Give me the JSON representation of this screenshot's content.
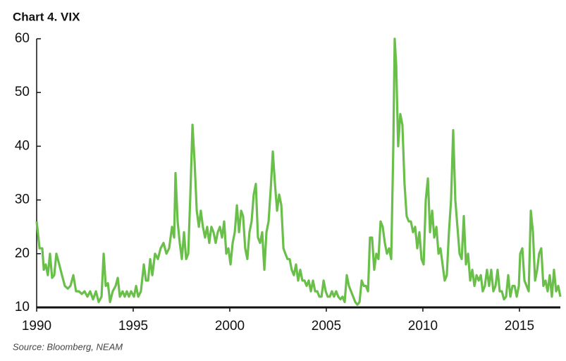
{
  "chart_data": {
    "type": "line",
    "title": "Chart 4. VIX",
    "source": "Source: Bloomberg, NEAM",
    "color": "#6abf4b",
    "x": [
      1990.0,
      1990.15,
      1990.29,
      1990.37,
      1990.47,
      1990.58,
      1990.69,
      1990.8,
      1990.91,
      1991.02,
      1991.17,
      1991.31,
      1991.46,
      1991.61,
      1991.75,
      1991.9,
      1992.04,
      1992.19,
      1992.34,
      1992.48,
      1992.63,
      1992.77,
      1992.92,
      1993.07,
      1993.21,
      1993.36,
      1993.47,
      1993.58,
      1993.69,
      1993.8,
      1993.94,
      1994.09,
      1994.2,
      1994.31,
      1994.45,
      1994.56,
      1994.67,
      1994.78,
      1994.89,
      1995.04,
      1995.15,
      1995.26,
      1995.4,
      1995.55,
      1995.66,
      1995.77,
      1995.88,
      1995.99,
      1996.13,
      1996.28,
      1996.42,
      1996.57,
      1996.72,
      1996.86,
      1997.01,
      1997.12,
      1997.19,
      1997.3,
      1997.41,
      1997.52,
      1997.63,
      1997.74,
      1997.85,
      1997.96,
      1998.07,
      1998.18,
      1998.29,
      1998.4,
      1998.5,
      1998.61,
      1998.72,
      1998.83,
      1998.94,
      1999.05,
      1999.16,
      1999.27,
      1999.38,
      1999.49,
      1999.6,
      1999.71,
      1999.82,
      1999.93,
      2000.04,
      2000.15,
      2000.26,
      2000.37,
      2000.48,
      2000.59,
      2000.69,
      2000.8,
      2000.91,
      2001.02,
      2001.13,
      2001.24,
      2001.35,
      2001.46,
      2001.57,
      2001.68,
      2001.79,
      2001.9,
      2002.01,
      2002.12,
      2002.23,
      2002.34,
      2002.45,
      2002.56,
      2002.67,
      2002.78,
      2002.88,
      2002.99,
      2003.1,
      2003.21,
      2003.32,
      2003.43,
      2003.54,
      2003.65,
      2003.76,
      2003.87,
      2003.98,
      2004.09,
      2004.2,
      2004.31,
      2004.42,
      2004.53,
      2004.64,
      2004.75,
      2004.86,
      2004.97,
      2005.07,
      2005.18,
      2005.29,
      2005.4,
      2005.51,
      2005.62,
      2005.73,
      2005.84,
      2005.95,
      2006.06,
      2006.17,
      2006.28,
      2006.39,
      2006.5,
      2006.61,
      2006.72,
      2006.83,
      2006.94,
      2007.05,
      2007.16,
      2007.26,
      2007.37,
      2007.48,
      2007.59,
      2007.7,
      2007.81,
      2007.92,
      2008.03,
      2008.14,
      2008.25,
      2008.36,
      2008.47,
      2008.54,
      2008.62,
      2008.72,
      2008.83,
      2008.94,
      2009.05,
      2009.16,
      2009.27,
      2009.38,
      2009.49,
      2009.6,
      2009.71,
      2009.82,
      2009.93,
      2010.04,
      2010.15,
      2010.26,
      2010.37,
      2010.48,
      2010.59,
      2010.7,
      2010.81,
      2010.91,
      2011.02,
      2011.13,
      2011.24,
      2011.35,
      2011.46,
      2011.57,
      2011.68,
      2011.79,
      2011.9,
      2012.01,
      2012.12,
      2012.23,
      2012.34,
      2012.45,
      2012.56,
      2012.67,
      2012.78,
      2012.89,
      2013.0,
      2013.1,
      2013.21,
      2013.32,
      2013.43,
      2013.54,
      2013.65,
      2013.76,
      2013.87,
      2013.98,
      2014.09,
      2014.2,
      2014.31,
      2014.42,
      2014.53,
      2014.64,
      2014.75,
      2014.86,
      2014.97,
      2015.04,
      2015.15,
      2015.26,
      2015.37,
      2015.48,
      2015.59,
      2015.7,
      2015.81,
      2015.92,
      2016.02,
      2016.13,
      2016.24,
      2016.35,
      2016.46,
      2016.57,
      2016.68,
      2016.79,
      2016.9,
      2017.01,
      2017.12
    ],
    "values": [
      26,
      21,
      21,
      17,
      18,
      16,
      20,
      15.5,
      16,
      20,
      18,
      16,
      14,
      13.5,
      14,
      16,
      13,
      13,
      12.5,
      13,
      12,
      13,
      11.5,
      13,
      11,
      12,
      20,
      14,
      14.5,
      11,
      13,
      14,
      15.5,
      12,
      13,
      12,
      13,
      12,
      13,
      12,
      14,
      12,
      13,
      18,
      15,
      15,
      19,
      16,
      20,
      19,
      21,
      22,
      20,
      21,
      25,
      23,
      35,
      26,
      22,
      19,
      24,
      19,
      20,
      31,
      44,
      37,
      28,
      25,
      28,
      25,
      23,
      25,
      22,
      25,
      24,
      22,
      24,
      25,
      23,
      26,
      20,
      21,
      18,
      22,
      24,
      29,
      24,
      28,
      27,
      21,
      19,
      24,
      26,
      31,
      33,
      23,
      22,
      24,
      17,
      24,
      26,
      32,
      39,
      33,
      28,
      31,
      29,
      21,
      20,
      19,
      19,
      17,
      16,
      18,
      15,
      17,
      15,
      15,
      14,
      15,
      13,
      15,
      13,
      13,
      12,
      12,
      15,
      13,
      12,
      12,
      13,
      12,
      13,
      12,
      11.5,
      12,
      11,
      16,
      14,
      13,
      12,
      11,
      10.5,
      11,
      15,
      14,
      14,
      13,
      23,
      23,
      17,
      20,
      19,
      26,
      25,
      22,
      20,
      21,
      19,
      40,
      60,
      55,
      40,
      46,
      44,
      33,
      27,
      26,
      26,
      24,
      25,
      21,
      24,
      19,
      18,
      30,
      34,
      24,
      28,
      23,
      25,
      20,
      21,
      18,
      15,
      16,
      24,
      30,
      43,
      30,
      25,
      20,
      19,
      27,
      18,
      20,
      15,
      17,
      14,
      16,
      15,
      16,
      13,
      14,
      17,
      14,
      17,
      13,
      14,
      17,
      13,
      13,
      11.5,
      12,
      16,
      12,
      14,
      14,
      12,
      14,
      20,
      21,
      15,
      14,
      13,
      28,
      24,
      15,
      17,
      20,
      21,
      14,
      15,
      13,
      16,
      12,
      17,
      13,
      14,
      12
    ],
    "xlim": [
      1990,
      2017.12
    ],
    "xticks": [
      1990,
      1995,
      2000,
      2005,
      2010,
      2015
    ],
    "ylim": [
      10,
      60
    ],
    "yticks": [
      10,
      20,
      30,
      40,
      50,
      60
    ]
  }
}
